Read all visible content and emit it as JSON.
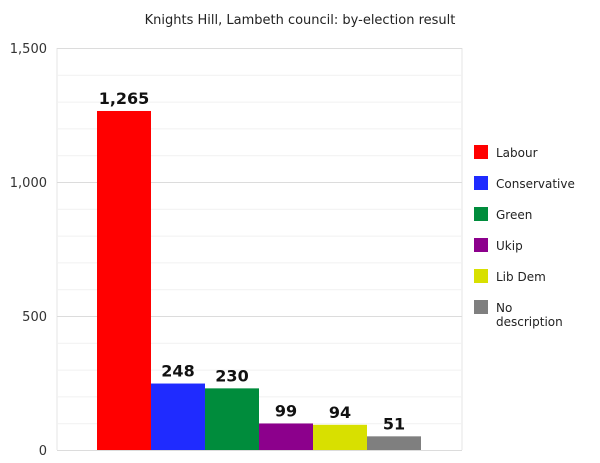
{
  "chart_data": {
    "type": "bar",
    "title": "Knights Hill, Lambeth council: by-election result",
    "xlabel": "",
    "ylabel": "",
    "ylim": [
      0,
      1500
    ],
    "yticks": [
      {
        "value": 0,
        "label": "0"
      },
      {
        "value": 500,
        "label": "500"
      },
      {
        "value": 1000,
        "label": "1,000"
      },
      {
        "value": 1500,
        "label": "1,500"
      }
    ],
    "grid": true,
    "legend_position": "right",
    "categories": [
      "Labour",
      "Conservative",
      "Green",
      "Ukip",
      "Lib Dem",
      "No description"
    ],
    "values": [
      1265,
      248,
      230,
      99,
      94,
      51
    ],
    "data_labels": [
      "1,265",
      "248",
      "230",
      "99",
      "94",
      "51"
    ],
    "legend": [
      {
        "lines": [
          "Labour"
        ]
      },
      {
        "lines": [
          "Conservative"
        ]
      },
      {
        "lines": [
          "Green"
        ]
      },
      {
        "lines": [
          "Ukip"
        ]
      },
      {
        "lines": [
          "Lib Dem"
        ]
      },
      {
        "lines": [
          "No",
          "description"
        ]
      }
    ],
    "colors": [
      "#ff0000",
      "#1f2bff",
      "#008c3c",
      "#8c008c",
      "#d8e000",
      "#7f7f7f"
    ]
  }
}
